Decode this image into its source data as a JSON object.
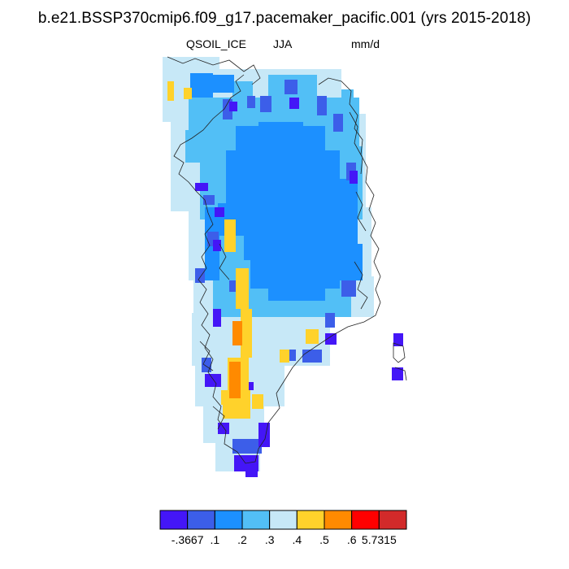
{
  "header": {
    "title": "b.e21.BSSP370cmip6.f09_g17.pacemaker_pacific.001 (yrs 2015-2018)",
    "variable": "QSOIL_ICE",
    "season": "JJA",
    "units": "mm/d"
  },
  "colorbar": {
    "colors": [
      "#4416f7",
      "#3c5ee9",
      "#1c90ff",
      "#52bff6",
      "#c7e8f7",
      "#ffd22b",
      "#ff8a00",
      "#ff0000",
      "#d22a2a"
    ],
    "labels": [
      "-.3667",
      ".1",
      ".2",
      ".3",
      ".4",
      ".5",
      ".6",
      "5.7315"
    ]
  }
}
